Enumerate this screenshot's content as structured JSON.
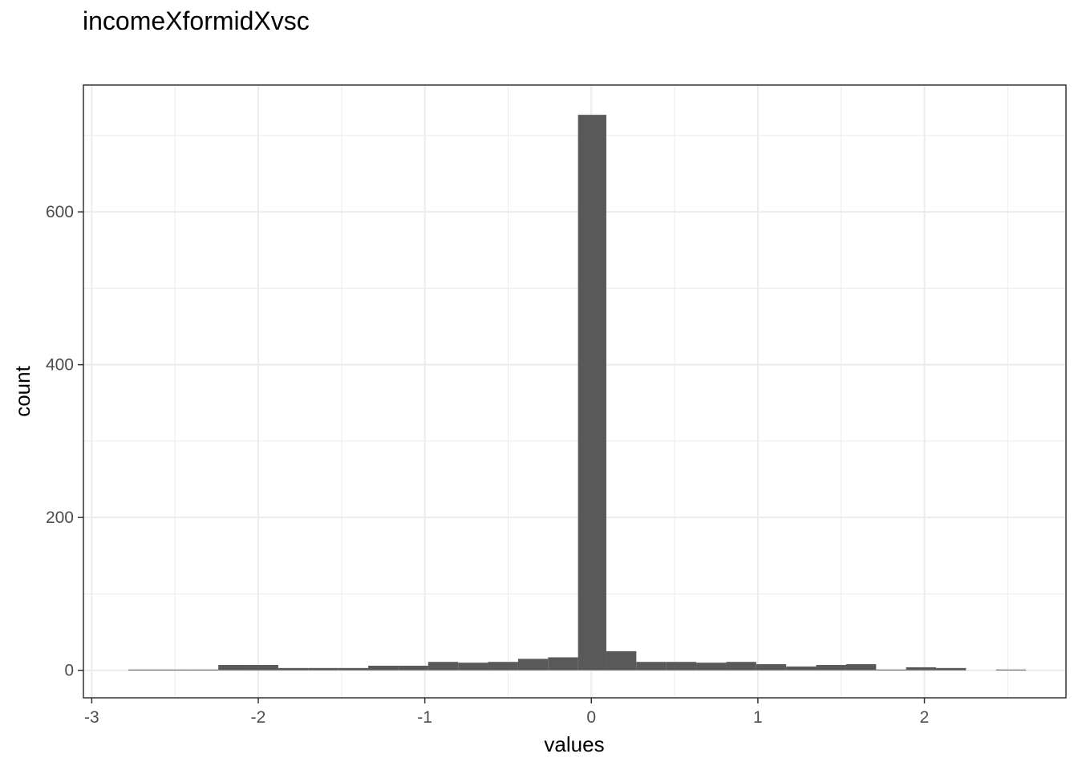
{
  "chart_data": {
    "type": "bar",
    "title": "incomeXformidXvsc",
    "xlabel": "values",
    "ylabel": "count",
    "xlim": [
      -3.05,
      2.85
    ],
    "ylim": [
      -36,
      766
    ],
    "x_ticks": [
      -3,
      -2,
      -1,
      0,
      1,
      2
    ],
    "x_tick_labels": [
      "-3",
      "-2",
      "-1",
      "0",
      "1",
      "2"
    ],
    "y_ticks": [
      0,
      200,
      400,
      600
    ],
    "y_tick_labels": [
      "0",
      "200",
      "400",
      "600"
    ],
    "grid": true,
    "bar_color": "#595959",
    "bins": [
      {
        "x0": -2.78,
        "x1": -2.6,
        "count": 1
      },
      {
        "x0": -2.6,
        "x1": -2.42,
        "count": 1
      },
      {
        "x0": -2.42,
        "x1": -2.24,
        "count": 1
      },
      {
        "x0": -2.24,
        "x1": -2.06,
        "count": 7
      },
      {
        "x0": -2.06,
        "x1": -1.88,
        "count": 7
      },
      {
        "x0": -1.88,
        "x1": -1.7,
        "count": 3
      },
      {
        "x0": -1.7,
        "x1": -1.52,
        "count": 3
      },
      {
        "x0": -1.52,
        "x1": -1.34,
        "count": 3
      },
      {
        "x0": -1.34,
        "x1": -1.16,
        "count": 6
      },
      {
        "x0": -1.16,
        "x1": -0.98,
        "count": 6
      },
      {
        "x0": -0.98,
        "x1": -0.8,
        "count": 11
      },
      {
        "x0": -0.8,
        "x1": -0.62,
        "count": 10
      },
      {
        "x0": -0.62,
        "x1": -0.44,
        "count": 11
      },
      {
        "x0": -0.44,
        "x1": -0.26,
        "count": 15
      },
      {
        "x0": -0.26,
        "x1": -0.08,
        "count": 17
      },
      {
        "x0": -0.08,
        "x1": 0.09,
        "count": 727
      },
      {
        "x0": 0.09,
        "x1": 0.27,
        "count": 25
      },
      {
        "x0": 0.27,
        "x1": 0.45,
        "count": 11
      },
      {
        "x0": 0.45,
        "x1": 0.63,
        "count": 11
      },
      {
        "x0": 0.63,
        "x1": 0.81,
        "count": 10
      },
      {
        "x0": 0.81,
        "x1": 0.99,
        "count": 11
      },
      {
        "x0": 0.99,
        "x1": 1.17,
        "count": 8
      },
      {
        "x0": 1.17,
        "x1": 1.35,
        "count": 5
      },
      {
        "x0": 1.35,
        "x1": 1.53,
        "count": 7
      },
      {
        "x0": 1.53,
        "x1": 1.71,
        "count": 8
      },
      {
        "x0": 1.71,
        "x1": 1.89,
        "count": 1
      },
      {
        "x0": 1.89,
        "x1": 2.07,
        "count": 4
      },
      {
        "x0": 2.07,
        "x1": 2.25,
        "count": 3
      },
      {
        "x0": 2.43,
        "x1": 2.61,
        "count": 1
      }
    ]
  }
}
